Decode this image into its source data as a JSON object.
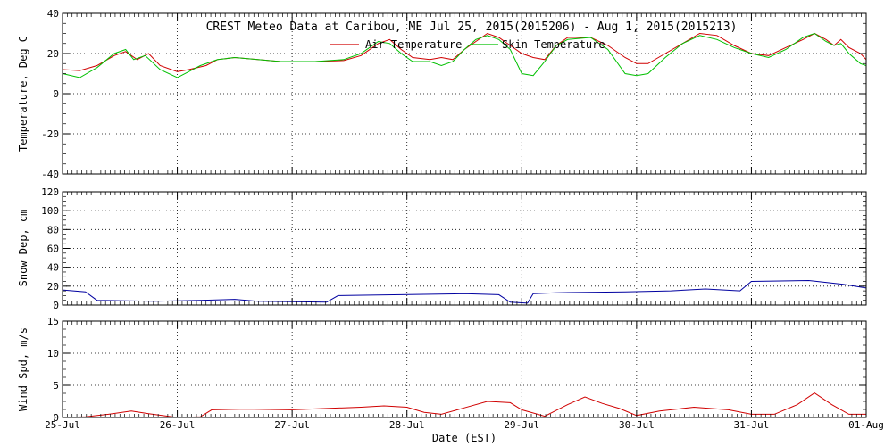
{
  "chart_data": [
    {
      "type": "line",
      "title": "CREST Meteo Data at Caribou, ME   Jul 25, 2015(2015206) - Aug  1, 2015(2015213)",
      "ylabel": "Temperature, Deg C",
      "ylim": [
        -40,
        40
      ],
      "yticks": [
        "-40",
        "-20",
        "0",
        "20",
        "40"
      ],
      "xlim": [
        0,
        7
      ],
      "grid": true,
      "legend_position": "top-center",
      "series": [
        {
          "name": "Air Temperature",
          "color": "#d00000",
          "points": [
            [
              0,
              12
            ],
            [
              0.15,
              11.5
            ],
            [
              0.3,
              14
            ],
            [
              0.45,
              19
            ],
            [
              0.55,
              21
            ],
            [
              0.65,
              17
            ],
            [
              0.75,
              20
            ],
            [
              0.85,
              14
            ],
            [
              1,
              11
            ],
            [
              1.1,
              12
            ],
            [
              1.25,
              14
            ],
            [
              1.35,
              17
            ],
            [
              1.5,
              18
            ],
            [
              1.7,
              17
            ],
            [
              1.9,
              16
            ],
            [
              2.2,
              16
            ],
            [
              2.45,
              16.5
            ],
            [
              2.6,
              19
            ],
            [
              2.75,
              25
            ],
            [
              2.85,
              27
            ],
            [
              2.95,
              22
            ],
            [
              3.05,
              18
            ],
            [
              3.2,
              17
            ],
            [
              3.3,
              18
            ],
            [
              3.4,
              17
            ],
            [
              3.5,
              22
            ],
            [
              3.6,
              26
            ],
            [
              3.7,
              30
            ],
            [
              3.8,
              28
            ],
            [
              3.9,
              24
            ],
            [
              4,
              20
            ],
            [
              4.1,
              18
            ],
            [
              4.2,
              17
            ],
            [
              4.3,
              24
            ],
            [
              4.4,
              28
            ],
            [
              4.6,
              28
            ],
            [
              4.75,
              24
            ],
            [
              4.9,
              18
            ],
            [
              5,
              15
            ],
            [
              5.1,
              15
            ],
            [
              5.25,
              20
            ],
            [
              5.4,
              25
            ],
            [
              5.55,
              30
            ],
            [
              5.7,
              29
            ],
            [
              5.85,
              24
            ],
            [
              6,
              20
            ],
            [
              6.15,
              19
            ],
            [
              6.3,
              23
            ],
            [
              6.45,
              27
            ],
            [
              6.55,
              30
            ],
            [
              6.65,
              27
            ],
            [
              6.72,
              24
            ],
            [
              6.78,
              27
            ],
            [
              6.85,
              23
            ],
            [
              6.95,
              20
            ],
            [
              7,
              17
            ]
          ]
        },
        {
          "name": "Skin Temperature",
          "color": "#00c000",
          "points": [
            [
              0,
              10
            ],
            [
              0.15,
              8
            ],
            [
              0.3,
              13
            ],
            [
              0.45,
              20
            ],
            [
              0.55,
              22
            ],
            [
              0.62,
              17
            ],
            [
              0.72,
              19
            ],
            [
              0.85,
              12
            ],
            [
              1,
              8
            ],
            [
              1.1,
              11
            ],
            [
              1.2,
              14
            ],
            [
              1.35,
              17
            ],
            [
              1.5,
              18
            ],
            [
              1.7,
              17
            ],
            [
              1.9,
              16
            ],
            [
              2.2,
              16
            ],
            [
              2.45,
              17
            ],
            [
              2.6,
              20
            ],
            [
              2.75,
              26
            ],
            [
              2.85,
              25
            ],
            [
              2.95,
              20
            ],
            [
              3.05,
              16
            ],
            [
              3.2,
              16
            ],
            [
              3.3,
              14
            ],
            [
              3.4,
              16
            ],
            [
              3.5,
              22
            ],
            [
              3.6,
              27
            ],
            [
              3.7,
              29
            ],
            [
              3.8,
              27
            ],
            [
              3.9,
              22
            ],
            [
              4,
              10
            ],
            [
              4.1,
              9
            ],
            [
              4.2,
              16
            ],
            [
              4.3,
              24
            ],
            [
              4.4,
              27
            ],
            [
              4.6,
              28
            ],
            [
              4.75,
              22
            ],
            [
              4.9,
              10
            ],
            [
              5,
              9
            ],
            [
              5.1,
              10
            ],
            [
              5.25,
              18
            ],
            [
              5.4,
              25
            ],
            [
              5.55,
              29
            ],
            [
              5.7,
              27
            ],
            [
              5.85,
              23
            ],
            [
              6,
              20
            ],
            [
              6.15,
              18
            ],
            [
              6.3,
              22
            ],
            [
              6.45,
              28
            ],
            [
              6.55,
              30
            ],
            [
              6.65,
              26
            ],
            [
              6.72,
              24
            ],
            [
              6.78,
              25
            ],
            [
              6.85,
              20
            ],
            [
              6.95,
              15
            ],
            [
              7,
              14
            ]
          ]
        }
      ]
    },
    {
      "type": "line",
      "ylabel": "Snow Dep, cm",
      "ylim": [
        0,
        120
      ],
      "yticks": [
        "0",
        "20",
        "40",
        "60",
        "80",
        "100",
        "120"
      ],
      "xlim": [
        0,
        7
      ],
      "grid": true,
      "series": [
        {
          "color": "#0000a0",
          "points": [
            [
              0,
              16
            ],
            [
              0.2,
              14
            ],
            [
              0.3,
              5
            ],
            [
              0.8,
              4
            ],
            [
              1.2,
              5
            ],
            [
              1.5,
              6
            ],
            [
              1.7,
              4
            ],
            [
              2.3,
              3
            ],
            [
              2.4,
              10
            ],
            [
              3.5,
              12
            ],
            [
              3.8,
              11
            ],
            [
              3.9,
              3
            ],
            [
              4.05,
              2
            ],
            [
              4.1,
              12
            ],
            [
              4.3,
              13
            ],
            [
              4.9,
              14
            ],
            [
              5.3,
              15
            ],
            [
              5.6,
              17
            ],
            [
              5.9,
              15
            ],
            [
              6,
              25
            ],
            [
              6.5,
              26
            ],
            [
              6.8,
              22
            ],
            [
              7,
              18
            ]
          ]
        }
      ]
    },
    {
      "type": "line",
      "ylabel": "Wind Spd, m/s",
      "xlabel": "Date (EST)",
      "ylim": [
        0,
        15
      ],
      "yticks": [
        "0",
        "5",
        "10",
        "15"
      ],
      "xlim": [
        0,
        7
      ],
      "categories": [
        "25-Jul",
        "26-Jul",
        "27-Jul",
        "28-Jul",
        "29-Jul",
        "30-Jul",
        "31-Jul",
        "01-Aug"
      ],
      "grid": true,
      "series": [
        {
          "color": "#d00000",
          "points": [
            [
              0,
              0
            ],
            [
              0.2,
              0.1
            ],
            [
              0.4,
              0.5
            ],
            [
              0.6,
              1
            ],
            [
              0.75,
              0.6
            ],
            [
              1,
              0
            ],
            [
              1.2,
              0.1
            ],
            [
              1.3,
              1.2
            ],
            [
              1.6,
              1.3
            ],
            [
              2,
              1.2
            ],
            [
              2.3,
              1.4
            ],
            [
              2.6,
              1.6
            ],
            [
              2.8,
              1.8
            ],
            [
              3,
              1.6
            ],
            [
              3.15,
              0.8
            ],
            [
              3.3,
              0.5
            ],
            [
              3.5,
              1.5
            ],
            [
              3.7,
              2.5
            ],
            [
              3.9,
              2.3
            ],
            [
              4,
              1.2
            ],
            [
              4.2,
              0.2
            ],
            [
              4.4,
              2
            ],
            [
              4.55,
              3.2
            ],
            [
              4.7,
              2.2
            ],
            [
              4.85,
              1.4
            ],
            [
              5,
              0.3
            ],
            [
              5.2,
              1
            ],
            [
              5.5,
              1.6
            ],
            [
              5.8,
              1.2
            ],
            [
              6,
              0.5
            ],
            [
              6.2,
              0.5
            ],
            [
              6.4,
              2
            ],
            [
              6.55,
              3.8
            ],
            [
              6.7,
              2
            ],
            [
              6.85,
              0.5
            ],
            [
              7,
              0.5
            ]
          ]
        }
      ]
    }
  ]
}
